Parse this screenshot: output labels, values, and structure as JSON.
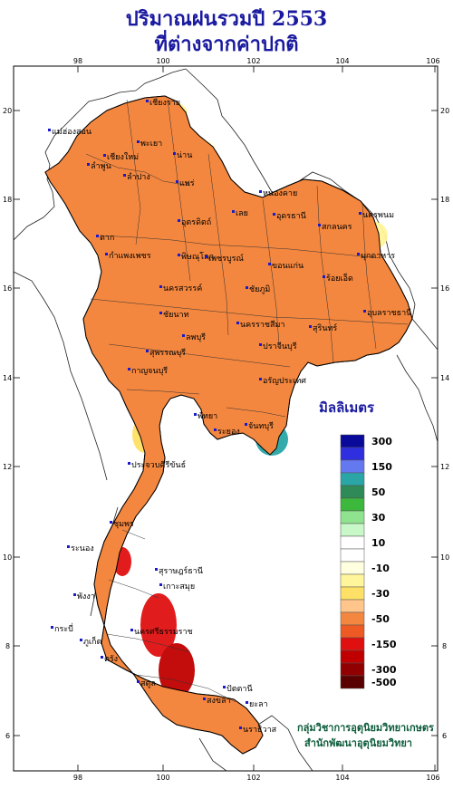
{
  "title_line1": "ปริมาณฝนรวมปี  2553",
  "title_line2": "ที่ต่างจากค่าปกติ",
  "legend": {
    "unit": "มิลลิเมตร",
    "bins": [
      {
        "label": "300",
        "color": "#0a0a9a"
      },
      {
        "label": "",
        "color": "#2f2fe0"
      },
      {
        "label": "150",
        "color": "#6478f0"
      },
      {
        "label": "",
        "color": "#2aa6a6"
      },
      {
        "label": "50",
        "color": "#2e8b57"
      },
      {
        "label": "",
        "color": "#3cb83c"
      },
      {
        "label": "30",
        "color": "#8fe38f"
      },
      {
        "label": "",
        "color": "#c8f7c8"
      },
      {
        "label": "10",
        "color": "#ffffff"
      },
      {
        "label": "",
        "color": "#ffffff"
      },
      {
        "label": "-10",
        "color": "#ffffe0"
      },
      {
        "label": "",
        "color": "#fff59a"
      },
      {
        "label": "-30",
        "color": "#ffe066"
      },
      {
        "label": "",
        "color": "#ffc58a"
      },
      {
        "label": "-50",
        "color": "#f4873f"
      },
      {
        "label": "",
        "color": "#ee5a24"
      },
      {
        "label": "-150",
        "color": "#e01010"
      },
      {
        "label": "",
        "color": "#c00000"
      },
      {
        "label": "-300",
        "color": "#900000"
      },
      {
        "label": "-500",
        "color": "#5a0000"
      }
    ]
  },
  "axes": {
    "lon_ticks": [
      "98",
      "100",
      "102",
      "104",
      "106"
    ],
    "lat_ticks": [
      "20",
      "18",
      "16",
      "14",
      "12",
      "10",
      "8",
      "6"
    ]
  },
  "cities": [
    "เชียงราย",
    "แม่ฮ่องสอน",
    "พะเยา",
    "เชียงใหม่",
    "ลำพูน",
    "น่าน",
    "ลำปาง",
    "แพร่",
    "ตาก",
    "อุตรดิตถ์",
    "หนองคาย",
    "อุดรธานี",
    "สกลนคร",
    "นครพนม",
    "เลย",
    "กำแพงเพชร",
    "พิษณุโลก",
    "เพชรบูรณ์",
    "ขอนแก่น",
    "มุกดาหาร",
    "ชัยภูมิ",
    "นครสวรรค์",
    "ร้อยเอ็ด",
    "อุบลราชธานี",
    "สุรินทร์",
    "ชัยนาท",
    "นครราชสีมา",
    "กาญจนบุรี",
    "สุพรรณบุรี",
    "ลพบุรี",
    "ปราจีนบุรี",
    "อรัญประเทศ",
    "พัทยา",
    "ระยอง",
    "จันทบุรี",
    "ประจวบคีรีขันธ์",
    "ชุมพร",
    "ระนอง",
    "สุราษฎร์ธานี",
    "เกาะสมุย",
    "นครศรีธรรมราช",
    "ภูเก็ต",
    "ตรัง",
    "สงขลา",
    "ปัตตานี",
    "ยะลา",
    "นราธิวาส",
    "สตูล",
    "กระบี่",
    "พังงา"
  ],
  "credits": {
    "line1": "กลุ่มวิชาการอุตุนิยมวิทยาเกษตร",
    "line2": "สำนักพัฒนาอุตุนิยมวิทยา"
  }
}
